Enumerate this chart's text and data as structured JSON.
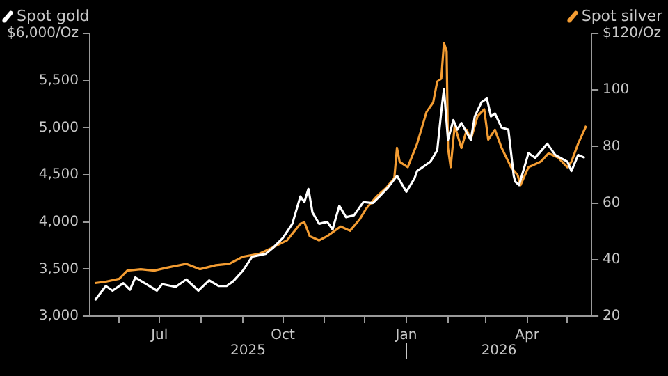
{
  "chart_data": {
    "type": "line",
    "legend": "top",
    "annotations": [
      "2025",
      "2026"
    ],
    "xlim": [
      "2025-05-10",
      "2026-05-19"
    ],
    "xticks": [
      {
        "value": "2025-06-01",
        "label": null
      },
      {
        "value": "2025-07-01",
        "label": "Jul"
      },
      {
        "value": "2025-08-01",
        "label": null
      },
      {
        "value": "2025-09-01",
        "label": null
      },
      {
        "value": "2025-10-01",
        "label": "Oct"
      },
      {
        "value": "2025-11-01",
        "label": null
      },
      {
        "value": "2025-12-01",
        "label": null
      },
      {
        "value": "2026-01-01",
        "label": "Jan"
      },
      {
        "value": "2026-02-01",
        "label": null
      },
      {
        "value": "2026-03-01",
        "label": null
      },
      {
        "value": "2026-04-01",
        "label": "Apr"
      },
      {
        "value": "2026-05-01",
        "label": null
      }
    ],
    "ylim": [
      3000,
      6000
    ],
    "yticks": [
      {
        "value": 3000,
        "label": "3,000"
      },
      {
        "value": 3500,
        "label": "3,500"
      },
      {
        "value": 4000,
        "label": "4,000"
      },
      {
        "value": 4500,
        "label": "4,500"
      },
      {
        "value": 5000,
        "label": "5,000"
      },
      {
        "value": 5500,
        "label": "5,500"
      },
      {
        "value": 6000,
        "label": "$6,000/Oz"
      }
    ],
    "y2lim": [
      20,
      120
    ],
    "y2ticks": [
      20,
      40,
      60,
      80,
      100,
      {
        "value": 120,
        "label": "$120/Oz"
      }
    ],
    "series": [
      {
        "name": "Spot gold",
        "color": "#ffffff",
        "x": [
          "2025-05-14",
          "2025-05-22",
          "2025-05-27",
          "2025-06-04",
          "2025-06-09",
          "2025-06-13",
          "2025-06-21",
          "2025-06-29",
          "2025-07-03",
          "2025-07-13",
          "2025-07-21",
          "2025-07-30",
          "2025-08-07",
          "2025-08-14",
          "2025-08-20",
          "2025-08-25",
          "2025-09-01",
          "2025-09-08",
          "2025-09-18",
          "2025-09-24",
          "2025-10-01",
          "2025-10-08",
          "2025-10-14",
          "2025-10-17",
          "2025-10-20",
          "2025-10-23",
          "2025-10-28",
          "2025-11-03",
          "2025-11-07",
          "2025-11-12",
          "2025-11-17",
          "2025-11-23",
          "2025-11-30",
          "2025-12-07",
          "2025-12-12",
          "2025-12-18",
          "2025-12-25",
          "2026-01-01",
          "2026-01-07",
          "2026-01-09",
          "2026-01-19",
          "2026-01-24",
          "2026-01-27",
          "2026-01-29",
          "2026-02-01",
          "2026-02-05",
          "2026-02-08",
          "2026-02-11",
          "2026-02-18",
          "2026-02-21",
          "2026-02-26",
          "2026-03-02",
          "2026-03-05",
          "2026-03-08",
          "2026-03-13",
          "2026-03-18",
          "2026-03-22",
          "2026-03-23",
          "2026-03-26",
          "2026-04-02",
          "2026-04-07",
          "2026-04-16",
          "2026-04-22",
          "2026-05-01",
          "2026-05-04",
          "2026-05-09",
          "2026-05-14"
        ],
        "values": [
          3170,
          3320,
          3270,
          3350,
          3280,
          3410,
          3340,
          3270,
          3340,
          3310,
          3390,
          3270,
          3380,
          3320,
          3320,
          3370,
          3480,
          3630,
          3660,
          3730,
          3830,
          3980,
          4270,
          4210,
          4350,
          4100,
          3980,
          4000,
          3920,
          4170,
          4050,
          4070,
          4210,
          4200,
          4270,
          4360,
          4490,
          4320,
          4460,
          4540,
          4640,
          4760,
          5170,
          5410,
          4870,
          5080,
          4980,
          5050,
          4870,
          5120,
          5270,
          5310,
          5120,
          5150,
          5000,
          4980,
          4490,
          4430,
          4390,
          4730,
          4680,
          4830,
          4710,
          4640,
          4540,
          4710,
          4680
        ]
      },
      {
        "name": "Spot silver",
        "color": "#f39c32",
        "axis": "y2",
        "x": [
          "2025-05-14",
          "2025-05-22",
          "2025-06-01",
          "2025-06-07",
          "2025-06-17",
          "2025-06-27",
          "2025-07-06",
          "2025-07-21",
          "2025-07-31",
          "2025-08-12",
          "2025-08-22",
          "2025-09-01",
          "2025-09-13",
          "2025-09-24",
          "2025-10-04",
          "2025-10-14",
          "2025-10-17",
          "2025-10-21",
          "2025-10-28",
          "2025-11-03",
          "2025-11-13",
          "2025-11-20",
          "2025-11-27",
          "2025-12-02",
          "2025-12-10",
          "2025-12-17",
          "2025-12-23",
          "2025-12-25",
          "2025-12-27",
          "2026-01-02",
          "2026-01-09",
          "2026-01-16",
          "2026-01-21",
          "2026-01-24",
          "2026-01-27",
          "2026-01-29",
          "2026-01-31",
          "2026-02-01",
          "2026-02-03",
          "2026-02-06",
          "2026-02-11",
          "2026-02-15",
          "2026-02-18",
          "2026-02-23",
          "2026-02-28",
          "2026-03-03",
          "2026-03-08",
          "2026-03-13",
          "2026-03-20",
          "2026-03-25",
          "2026-03-27",
          "2026-04-02",
          "2026-04-11",
          "2026-04-17",
          "2026-04-24",
          "2026-05-01",
          "2026-05-04",
          "2026-05-09",
          "2026-05-15"
        ],
        "values": [
          31.7,
          32.2,
          33.2,
          36.1,
          36.6,
          36.1,
          37.1,
          38.5,
          36.6,
          38,
          38.5,
          41,
          42,
          44.4,
          46.8,
          52.7,
          53.2,
          48.3,
          46.8,
          48.3,
          51.7,
          50.2,
          54.1,
          58,
          62.4,
          65.4,
          68.8,
          79.5,
          74.6,
          72.7,
          81,
          92.2,
          95.6,
          103,
          104,
          116.6,
          113.7,
          79.5,
          72.7,
          87.3,
          79.5,
          85.9,
          82.4,
          90.7,
          93.2,
          82.4,
          85.9,
          79.5,
          72.7,
          69.8,
          66.3,
          72.7,
          74.6,
          77.6,
          76.1,
          72.7,
          74.6,
          81,
          87.3
        ]
      }
    ]
  }
}
